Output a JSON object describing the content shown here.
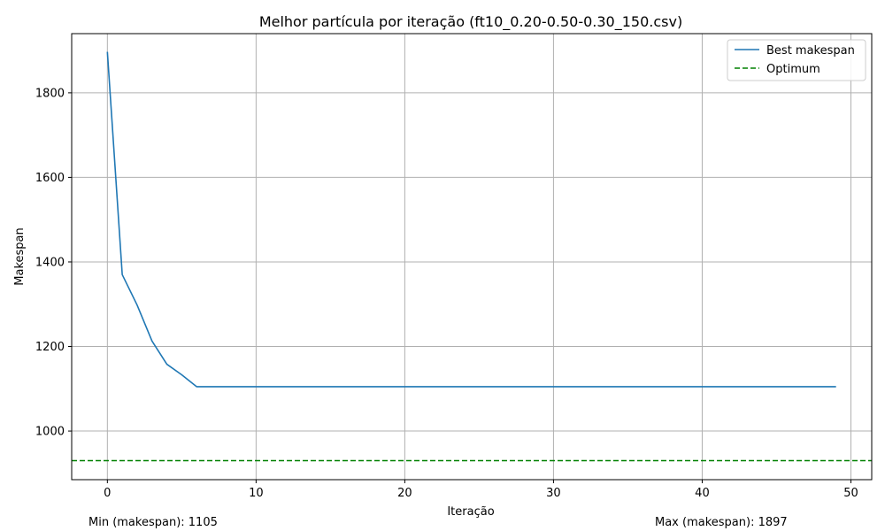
{
  "chart_data": {
    "type": "line",
    "title": "Melhor partícula por iteração (ft10_0.20-0.50-0.30_150.csv)",
    "xlabel": "Iteração",
    "ylabel": "Makespan",
    "xlim": [
      -2.4,
      51.4
    ],
    "ylim": [
      885,
      1940
    ],
    "xticks": [
      0,
      10,
      20,
      30,
      40,
      50
    ],
    "yticks": [
      1000,
      1200,
      1400,
      1600,
      1800
    ],
    "grid": true,
    "legend_position": "top-right",
    "series": [
      {
        "name": "Best makespan",
        "color": "#1f77b4",
        "style": "solid",
        "x": [
          0,
          1,
          2,
          3,
          4,
          5,
          6,
          7,
          8,
          9,
          10,
          11,
          12,
          13,
          14,
          15,
          16,
          17,
          18,
          19,
          20,
          21,
          22,
          23,
          24,
          25,
          26,
          27,
          28,
          29,
          30,
          31,
          32,
          33,
          34,
          35,
          36,
          37,
          38,
          39,
          40,
          41,
          42,
          43,
          44,
          45,
          46,
          47,
          48,
          49
        ],
        "y": [
          1897,
          1370,
          1298,
          1213,
          1158,
          1133,
          1105,
          1105,
          1105,
          1105,
          1105,
          1105,
          1105,
          1105,
          1105,
          1105,
          1105,
          1105,
          1105,
          1105,
          1105,
          1105,
          1105,
          1105,
          1105,
          1105,
          1105,
          1105,
          1105,
          1105,
          1105,
          1105,
          1105,
          1105,
          1105,
          1105,
          1105,
          1105,
          1105,
          1105,
          1105,
          1105,
          1105,
          1105,
          1105,
          1105,
          1105,
          1105,
          1105,
          1105
        ]
      },
      {
        "name": "Optimum",
        "color": "#008000",
        "style": "dashed",
        "hline": 930
      }
    ],
    "annotations": {
      "min_text": "Min (makespan): 1105",
      "max_text": "Max (makespan): 1897"
    }
  }
}
